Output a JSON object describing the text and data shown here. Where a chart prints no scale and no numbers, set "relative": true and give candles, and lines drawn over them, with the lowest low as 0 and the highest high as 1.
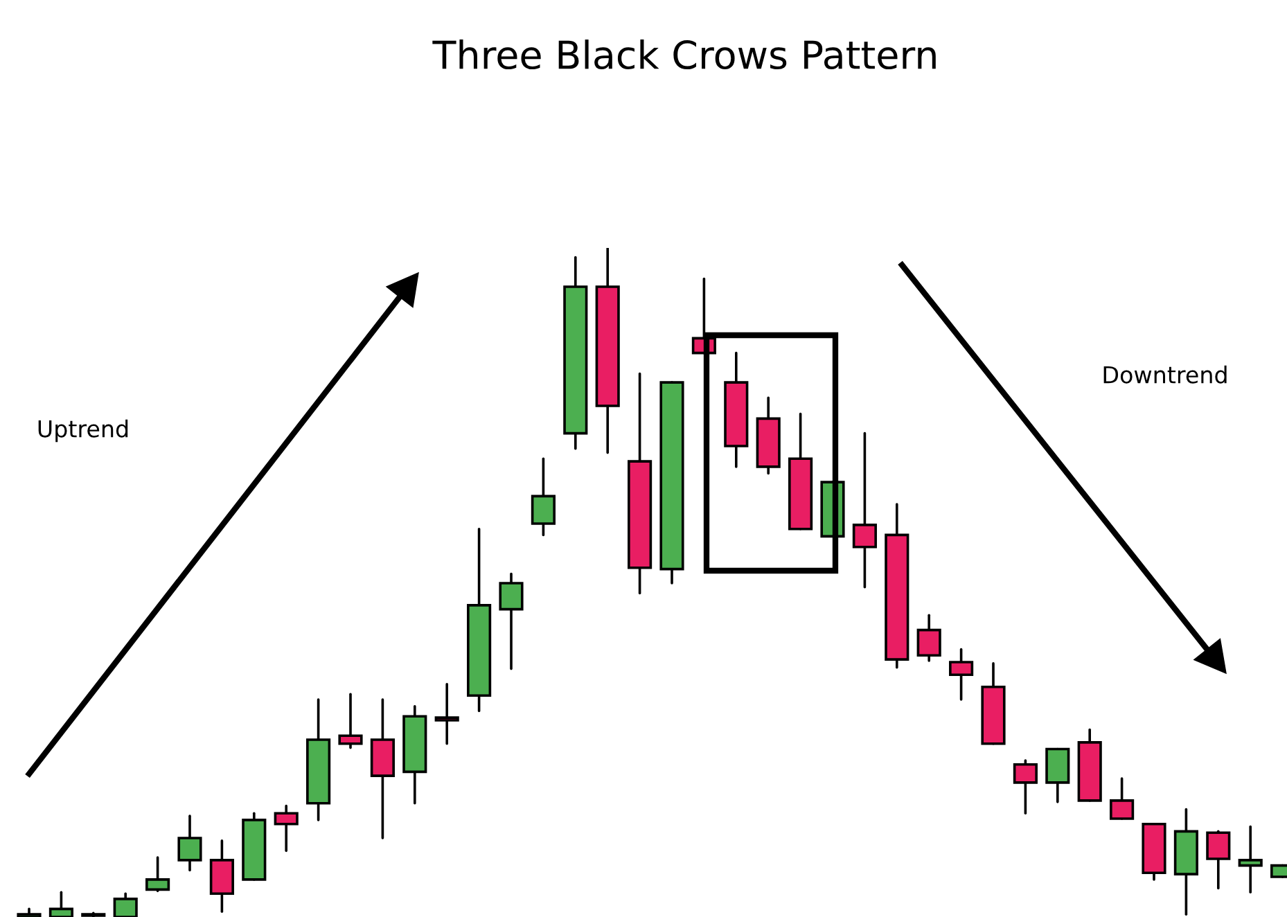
{
  "chart_data": {
    "type": "candlestick",
    "title": "Three Black Crows Pattern",
    "relative": true,
    "annotations": [
      "Uptrend",
      "Downtrend"
    ],
    "categories": [
      null,
      null,
      null,
      null,
      null,
      null,
      null,
      null,
      null,
      null,
      null,
      null,
      null,
      null,
      null,
      null,
      null,
      null,
      null,
      null,
      null,
      null,
      null,
      null,
      null,
      null,
      null,
      null,
      null,
      null,
      null,
      null,
      null,
      null,
      null,
      null,
      null,
      null,
      null,
      null
    ],
    "ohlc": [
      [
        0,
        0.012,
        0,
        0.004
      ],
      [
        0,
        0.037,
        0,
        0.012
      ],
      [
        0.002,
        0.006,
        0,
        0.004
      ],
      [
        0,
        0.035,
        0,
        0.027
      ],
      [
        0.041,
        0.089,
        0.039,
        0.056
      ],
      [
        0.085,
        0.151,
        0.07,
        0.118
      ],
      [
        0.085,
        0.114,
        0.008,
        0.035
      ],
      [
        0.056,
        0.155,
        0.056,
        0.145
      ],
      [
        0.155,
        0.166,
        0.099,
        0.139
      ],
      [
        0.17,
        0.325,
        0.145,
        0.265
      ],
      [
        0.271,
        0.333,
        0.253,
        0.259
      ],
      [
        0.265,
        0.325,
        0.118,
        0.211
      ],
      [
        0.217,
        0.315,
        0.17,
        0.3
      ],
      [
        0.298,
        0.348,
        0.259,
        0.294
      ],
      [
        0.331,
        0.58,
        0.308,
        0.466
      ],
      [
        0.46,
        0.513,
        0.371,
        0.499
      ],
      [
        0.588,
        0.685,
        0.571,
        0.629
      ],
      [
        0.723,
        0.986,
        0.7,
        0.942
      ],
      [
        0.942,
        1,
        0.694,
        0.764
      ],
      [
        0.681,
        0.812,
        0.484,
        0.522
      ],
      [
        0.52,
        0.799,
        0.499,
        0.799
      ],
      [
        0.865,
        0.954,
        0.843,
        0.843
      ],
      [
        0.799,
        0.843,
        0.673,
        0.704
      ],
      [
        0.745,
        0.776,
        0.663,
        0.673
      ],
      [
        0.685,
        0.752,
        0.58,
        0.58
      ],
      [
        0.569,
        0.65,
        0.569,
        0.65
      ],
      [
        0.586,
        0.723,
        0.493,
        0.553
      ],
      [
        0.571,
        0.617,
        0.373,
        0.385
      ],
      [
        0.429,
        0.451,
        0.383,
        0.391
      ],
      [
        0.381,
        0.4,
        0.325,
        0.362
      ],
      [
        0.344,
        0.379,
        0.259,
        0.259
      ],
      [
        0.228,
        0.234,
        0.155,
        0.201
      ],
      [
        0.201,
        0.251,
        0.172,
        0.251
      ],
      [
        0.261,
        0.28,
        0.174,
        0.174
      ],
      [
        0.174,
        0.207,
        0.147,
        0.147
      ],
      [
        0.139,
        0.139,
        0.056,
        0.066
      ],
      [
        0.064,
        0.161,
        0.004,
        0.128
      ],
      [
        0.126,
        0.128,
        0.043,
        0.087
      ],
      [
        0.077,
        0.135,
        0.037,
        0.085
      ],
      [
        0.06,
        0.077,
        0.06,
        0.077
      ]
    ],
    "colors": [
      "#4caf50",
      "#4caf50",
      "#4caf50",
      "#4caf50",
      "#4caf50",
      "#4caf50",
      "#e91e63",
      "#4caf50",
      "#e91e63",
      "#4caf50",
      "#e91e63",
      "#e91e63",
      "#4caf50",
      "#e91e63",
      "#4caf50",
      "#4caf50",
      "#4caf50",
      "#4caf50",
      "#e91e63",
      "#e91e63",
      "#4caf50",
      "#e91e63",
      "#e91e63",
      "#e91e63",
      "#e91e63",
      "#4caf50",
      "#e91e63",
      "#e91e63",
      "#e91e63",
      "#e91e63",
      "#e91e63",
      "#e91e63",
      "#4caf50",
      "#e91e63",
      "#e91e63",
      "#e91e63",
      "#4caf50",
      "#e91e63",
      "#4caf50",
      "#4caf50"
    ]
  }
}
